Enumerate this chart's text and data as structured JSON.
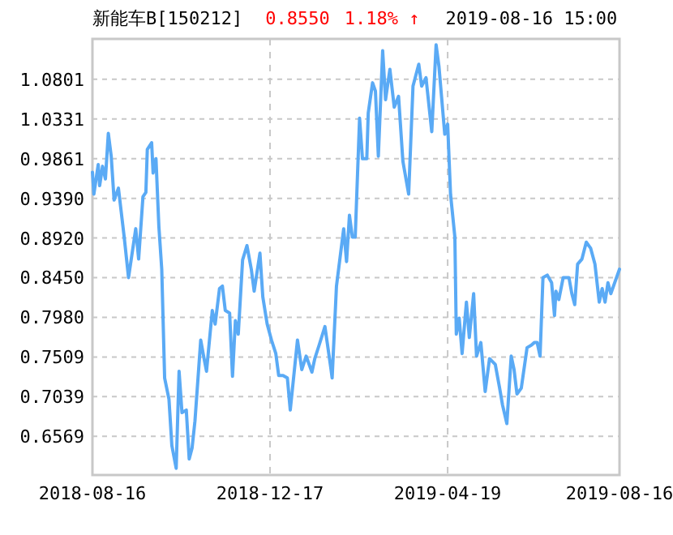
{
  "chart_data": {
    "type": "line",
    "title": "新能车B[150212]",
    "annotations": [
      "0.8550",
      "1.18% ↑",
      "2019-08-16 15:00"
    ],
    "color": "#5aaaf5",
    "grid": true,
    "xlim": [
      "2018-08-16",
      "2019-08-16"
    ],
    "xticks": [
      "2018-08-16",
      "2018-12-17",
      "2019-04-19",
      "2019-08-16"
    ],
    "ylim": [
      0.611,
      1.128
    ],
    "yticks": [
      0.6569,
      0.7039,
      0.7509,
      {
        "value": 0.798,
        "label": "0.7980"
      },
      {
        "value": 0.845,
        "label": "0.8450"
      },
      {
        "value": 0.892,
        "label": "0.8920"
      },
      {
        "value": 0.939,
        "label": "0.9390"
      },
      0.9861,
      1.0331,
      1.0801
    ],
    "x": [
      "2018-08-16",
      "2018-08-17",
      "2018-08-20",
      "2018-08-21",
      "2018-08-23",
      "2018-08-25",
      "2018-08-27",
      "2018-08-29",
      "2018-08-31",
      "2018-09-03",
      "2018-09-07",
      "2018-09-10",
      "2018-09-15",
      "2018-09-17",
      "2018-09-20",
      "2018-09-22",
      "2018-09-23",
      "2018-09-26",
      "2018-09-27",
      "2018-09-29",
      "2018-10-01",
      "2018-10-03",
      "2018-10-05",
      "2018-10-08",
      "2018-10-10",
      "2018-10-13",
      "2018-10-15",
      "2018-10-17",
      "2018-10-20",
      "2018-10-22",
      "2018-10-24",
      "2018-10-26",
      "2018-10-30",
      "2018-11-01",
      "2018-11-03",
      "2018-11-07",
      "2018-11-09",
      "2018-11-12",
      "2018-11-14",
      "2018-11-16",
      "2018-11-19",
      "2018-11-21",
      "2018-11-23",
      "2018-11-25",
      "2018-11-28",
      "2018-12-01",
      "2018-12-04",
      "2018-12-06",
      "2018-12-10",
      "2018-12-12",
      "2018-12-15",
      "2018-12-18",
      "2018-12-21",
      "2018-12-23",
      "2018-12-26",
      "2018-12-29",
      "2018-12-31",
      "2019-01-05",
      "2019-01-08",
      "2019-01-11",
      "2019-01-15",
      "2019-01-17",
      "2019-01-20",
      "2019-01-24",
      "2019-01-28",
      "2019-01-29",
      "2019-02-01",
      "2019-02-06",
      "2019-02-08",
      "2019-02-10",
      "2019-02-12",
      "2019-02-14",
      "2019-02-17",
      "2019-02-19",
      "2019-02-22",
      "2019-02-23",
      "2019-02-26",
      "2019-02-28",
      "2019-03-02",
      "2019-03-05",
      "2019-03-07",
      "2019-03-10",
      "2019-03-13",
      "2019-03-16",
      "2019-03-19",
      "2019-03-23",
      "2019-03-26",
      "2019-03-30",
      "2019-04-01",
      "2019-04-04",
      "2019-04-08",
      "2019-04-11",
      "2019-04-13",
      "2019-04-17",
      "2019-04-19",
      "2019-04-21",
      "2019-04-24",
      "2019-04-25",
      "2019-04-27",
      "2019-04-29",
      "2019-05-02",
      "2019-05-04",
      "2019-05-07",
      "2019-05-09",
      "2019-05-12",
      "2019-05-15",
      "2019-05-18",
      "2019-05-22",
      "2019-05-25",
      "2019-05-27",
      "2019-05-30",
      "2019-06-02",
      "2019-06-04",
      "2019-06-06",
      "2019-06-09",
      "2019-06-13",
      "2019-06-16",
      "2019-06-18",
      "2019-06-20",
      "2019-06-22",
      "2019-06-24",
      "2019-06-27",
      "2019-06-30",
      "2019-07-02",
      "2019-07-03",
      "2019-07-05",
      "2019-07-08",
      "2019-07-12",
      "2019-07-14",
      "2019-07-16",
      "2019-07-18",
      "2019-07-21",
      "2019-07-24",
      "2019-07-27",
      "2019-07-30",
      "2019-08-02",
      "2019-08-04",
      "2019-08-06",
      "2019-08-08",
      "2019-08-10",
      "2019-08-16"
    ],
    "values": [
      0.97,
      0.944,
      0.979,
      0.954,
      0.977,
      0.962,
      1.016,
      0.989,
      0.937,
      0.951,
      0.893,
      0.845,
      0.903,
      0.867,
      0.941,
      0.946,
      0.997,
      1.005,
      0.969,
      0.986,
      0.906,
      0.855,
      0.726,
      0.701,
      0.646,
      0.619,
      0.734,
      0.685,
      0.688,
      0.63,
      0.643,
      0.675,
      0.771,
      0.752,
      0.734,
      0.806,
      0.79,
      0.832,
      0.835,
      0.806,
      0.803,
      0.728,
      0.794,
      0.778,
      0.866,
      0.883,
      0.855,
      0.829,
      0.874,
      0.822,
      0.79,
      0.771,
      0.755,
      0.729,
      0.729,
      0.726,
      0.688,
      0.771,
      0.736,
      0.752,
      0.733,
      0.749,
      0.765,
      0.787,
      0.739,
      0.726,
      0.835,
      0.903,
      0.864,
      0.919,
      0.893,
      0.893,
      1.034,
      0.986,
      0.986,
      1.04,
      1.076,
      1.066,
      0.989,
      1.114,
      1.056,
      1.092,
      1.047,
      1.06,
      0.983,
      0.944,
      1.072,
      1.098,
      1.072,
      1.082,
      1.018,
      1.121,
      1.095,
      1.015,
      1.027,
      0.944,
      0.893,
      0.778,
      0.797,
      0.755,
      0.816,
      0.774,
      0.826,
      0.752,
      0.768,
      0.71,
      0.749,
      0.742,
      0.714,
      0.694,
      0.672,
      0.752,
      0.736,
      0.707,
      0.714,
      0.762,
      0.765,
      0.768,
      0.768,
      0.752,
      0.845,
      0.848,
      0.839,
      0.8,
      0.829,
      0.819,
      0.845,
      0.845,
      0.826,
      0.813,
      0.861,
      0.867,
      0.887,
      0.88,
      0.861,
      0.816,
      0.832,
      0.816,
      0.839,
      0.826,
      0.855
    ]
  }
}
